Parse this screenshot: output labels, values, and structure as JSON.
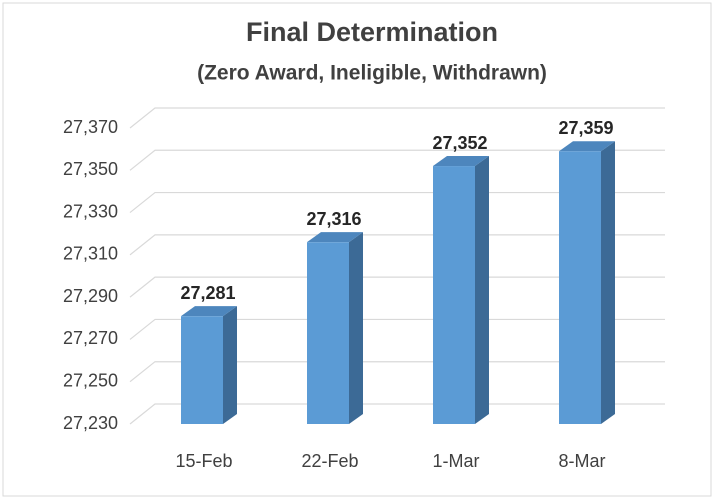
{
  "chart_data": {
    "type": "bar3d",
    "title": "Final Determination",
    "subtitle": "(Zero Award, Ineligible, Withdrawn)",
    "categories": [
      "15-Feb",
      "22-Feb",
      "1-Mar",
      "8-Mar"
    ],
    "values": [
      27281,
      27316,
      27352,
      27359
    ],
    "value_labels": [
      "27,281",
      "27,316",
      "27,352",
      "27,359"
    ],
    "color": "#5b9bd5",
    "ylim": [
      27230,
      27370
    ],
    "yticks": [
      {
        "value": 27230,
        "label": "27,230"
      },
      {
        "value": 27250,
        "label": "27,250"
      },
      {
        "value": 27270,
        "label": "27,270"
      },
      {
        "value": 27290,
        "label": "27,290"
      },
      {
        "value": 27310,
        "label": "27,310"
      },
      {
        "value": 27330,
        "label": "27,330"
      },
      {
        "value": 27350,
        "label": "27,350"
      },
      {
        "value": 27370,
        "label": "27,370"
      }
    ],
    "grid": true
  }
}
